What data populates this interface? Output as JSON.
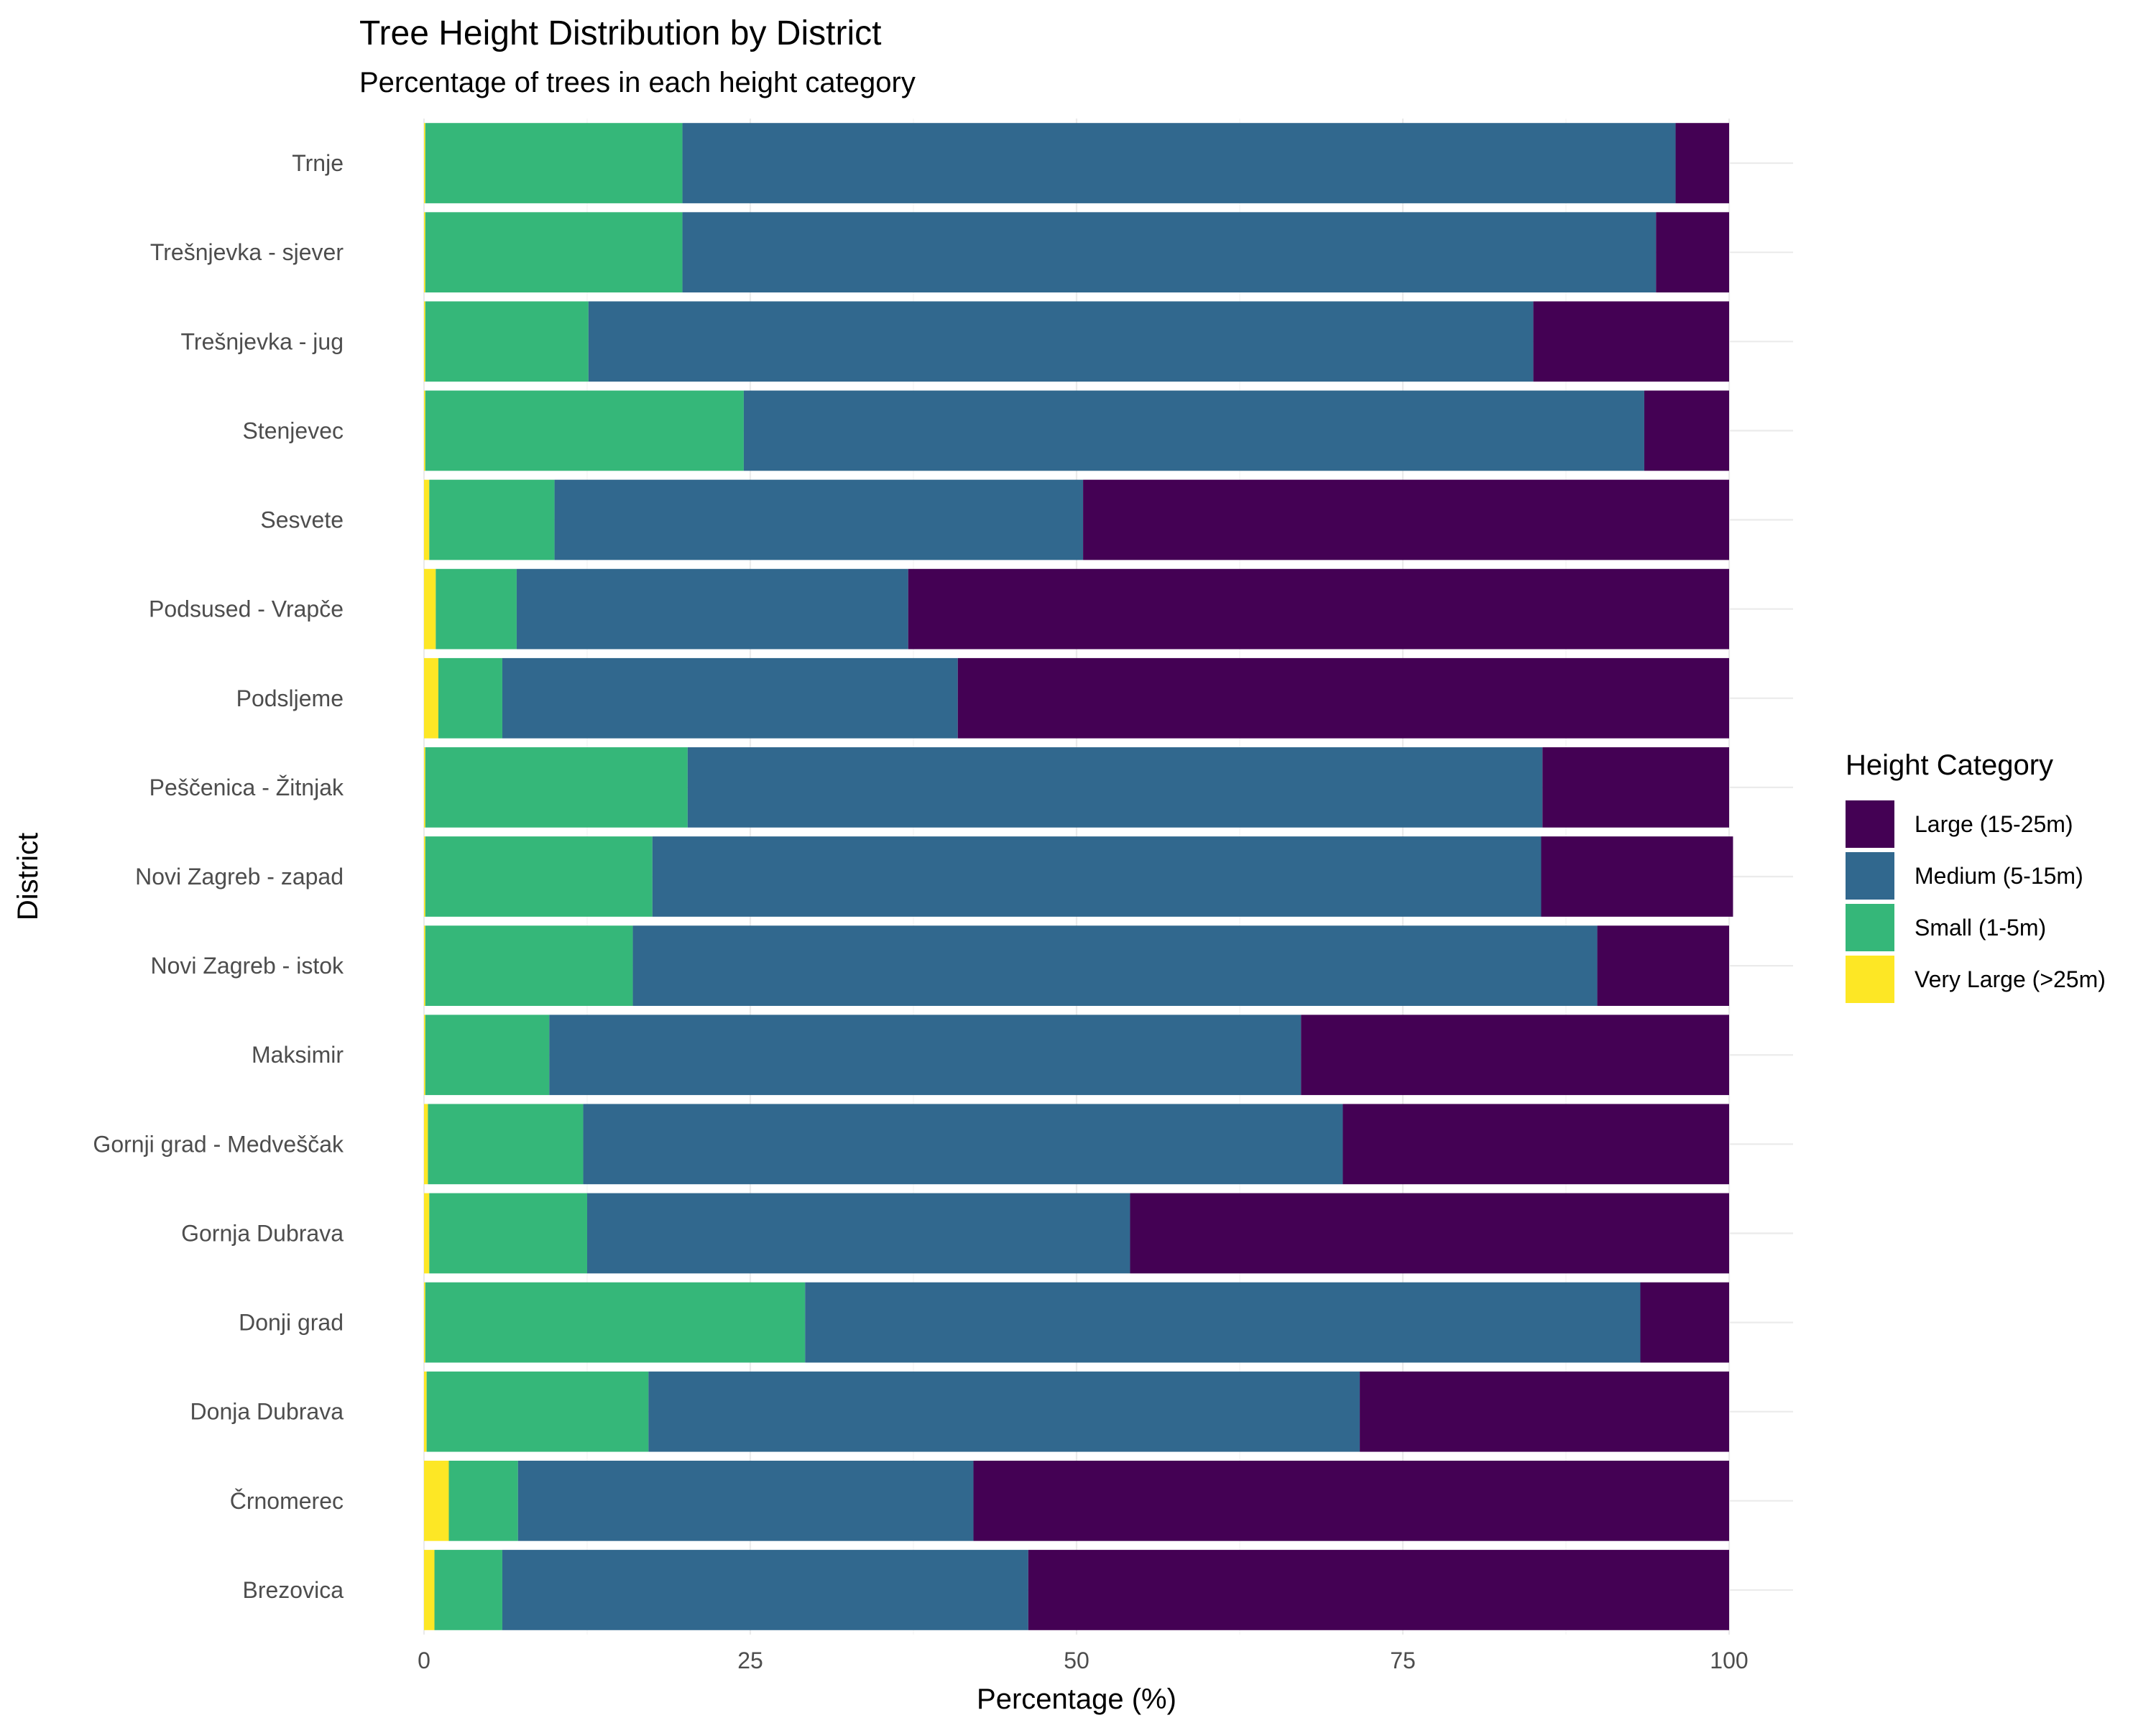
{
  "chart_data": {
    "type": "bar",
    "orientation": "horizontal",
    "stacked": true,
    "title": "Tree Height Distribution by District",
    "subtitle": "Percentage of trees in each height category",
    "xlabel": "Percentage (%)",
    "ylabel": "District",
    "xlim": [
      0,
      100
    ],
    "xticks": [
      0,
      25,
      50,
      75,
      100
    ],
    "grid": true,
    "legend": {
      "title": "Height Category",
      "position": "right"
    },
    "categories": [
      "Trnje",
      "Trešnjevka - sjever",
      "Trešnjevka - jug",
      "Stenjevec",
      "Sesvete",
      "Podsused - Vrapče",
      "Podsljeme",
      "Peščenica - Žitnjak",
      "Novi Zagreb - zapad",
      "Novi Zagreb - istok",
      "Maksimir",
      "Gornji grad - Medveščak",
      "Gornja Dubrava",
      "Donji grad",
      "Donja Dubrava",
      "Črnomerec",
      "Brezovica"
    ],
    "stack_order": [
      "Very Large (>25m)",
      "Small (1-5m)",
      "Medium (5-15m)",
      "Large (15-25m)"
    ],
    "series": [
      {
        "name": "Large (15-25m)",
        "color": "#440154",
        "values": [
          4.1,
          5.6,
          15.0,
          6.5,
          49.5,
          62.9,
          59.1,
          14.3,
          14.7,
          10.1,
          32.8,
          29.6,
          45.9,
          6.8,
          28.3,
          57.9,
          53.7
        ]
      },
      {
        "name": "Medium (5-15m)",
        "color": "#31688e",
        "values": [
          76.1,
          74.6,
          72.4,
          69.0,
          40.5,
          30.0,
          34.9,
          65.5,
          68.1,
          73.9,
          57.6,
          58.2,
          41.6,
          64.0,
          54.5,
          34.9,
          40.3
        ]
      },
      {
        "name": "Small (1-5m)",
        "color": "#35b779",
        "values": [
          19.7,
          19.7,
          12.5,
          24.4,
          9.6,
          6.2,
          4.9,
          20.1,
          17.4,
          15.9,
          9.5,
          11.9,
          12.1,
          29.1,
          17.0,
          5.3,
          5.2
        ]
      },
      {
        "name": "Very Large (>25m)",
        "color": "#fde725",
        "values": [
          0.1,
          0.1,
          0.1,
          0.1,
          0.4,
          0.9,
          1.1,
          0.1,
          0.1,
          0.1,
          0.1,
          0.3,
          0.4,
          0.1,
          0.2,
          1.9,
          0.8
        ]
      }
    ]
  }
}
